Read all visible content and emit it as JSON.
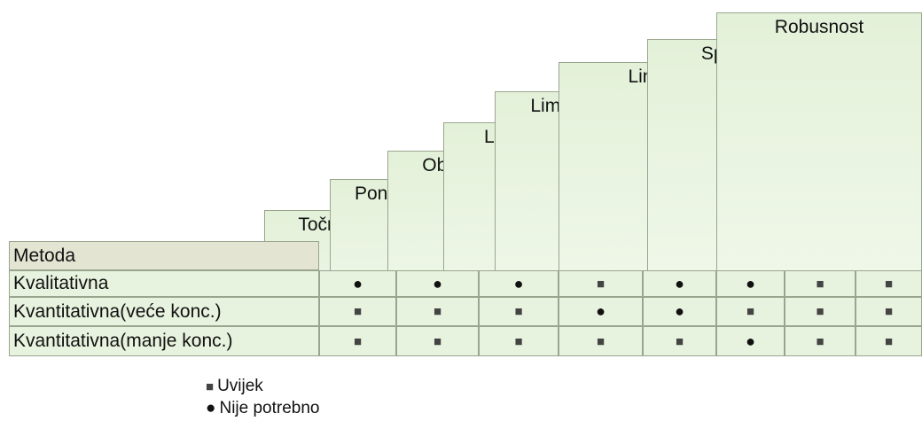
{
  "table": {
    "columns": [
      "Točnost",
      "Ponovljivost",
      "Obnovljivost",
      "Limit detekcije",
      "Limit kvantifikacije",
      "Linearnost",
      "Specifičnost",
      "Robusnost"
    ],
    "corner": "Metoda",
    "rows": [
      {
        "label": "Kvalitativna",
        "cells": [
          "●",
          "●",
          "●",
          "■",
          "●",
          "●",
          "■",
          "■"
        ]
      },
      {
        "label": "Kvantitativna(veće konc.)",
        "cells": [
          "■",
          "■",
          "■",
          "●",
          "●",
          "■",
          "■",
          "■"
        ]
      },
      {
        "label": "Kvantitativna(manje konc.)",
        "cells": [
          "■",
          "■",
          "■",
          "■",
          "■",
          "●",
          "■",
          "■"
        ]
      }
    ]
  },
  "legend": [
    {
      "symbol": "■",
      "label": "Uvijek"
    },
    {
      "symbol": "●",
      "label": "Nije potrebno"
    }
  ]
}
